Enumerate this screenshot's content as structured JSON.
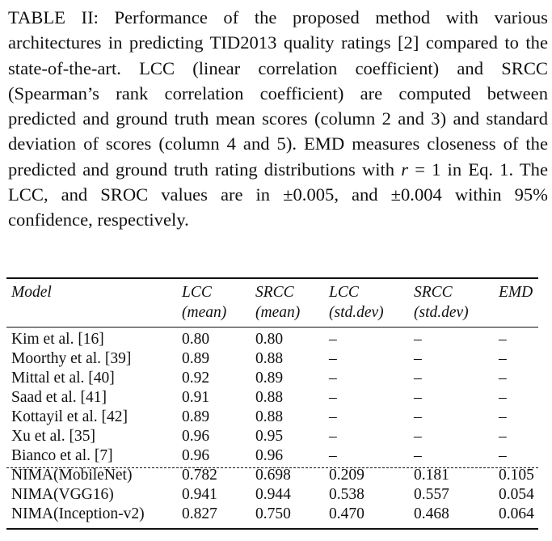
{
  "caption": {
    "label": "TABLE II:",
    "text_1": " Performance of the proposed method with various architectures in predicting TID2013 quality ratings [2] compared to the state-of-the-art. LCC (linear correlation coefficient) and SRCC (Spearman’s rank correlation coefficient) are computed between predicted and ground truth mean scores (column 2 and 3) and standard deviation of scores (column 4 and 5). EMD measures closeness of the predicted and ground truth rating distributions with ",
    "math_r": "r",
    "eq_text": " = 1",
    "text_2": " in Eq. 1. The LCC, and SROC values are in ±0.005, and ±0.004 within 95% confidence, respectively."
  },
  "table": {
    "headers": [
      {
        "line1": "Model",
        "line2": ""
      },
      {
        "line1": "LCC",
        "line2": "(mean)"
      },
      {
        "line1": "SRCC",
        "line2": "(mean)"
      },
      {
        "line1": "LCC",
        "line2": "(std.dev)"
      },
      {
        "line1": "SRCC",
        "line2": "(std.dev)"
      },
      {
        "line1": "EMD",
        "line2": ""
      }
    ],
    "rows": [
      [
        "Kim et al. [16]",
        "0.80",
        "0.80",
        "–",
        "–",
        "–"
      ],
      [
        "Moorthy et al. [39]",
        "0.89",
        "0.88",
        "–",
        "–",
        "–"
      ],
      [
        "Mittal et al. [40]",
        "0.92",
        "0.89",
        "–",
        "–",
        "–"
      ],
      [
        "Saad et al. [41]",
        "0.91",
        "0.88",
        "–",
        "–",
        "–"
      ],
      [
        "Kottayil et al. [42]",
        "0.89",
        "0.88",
        "–",
        "–",
        "–"
      ],
      [
        "Xu et al. [35]",
        "0.96",
        "0.95",
        "–",
        "–",
        "–"
      ],
      [
        "Bianco et al. [7]",
        "0.96",
        "0.96",
        "–",
        "–",
        "–"
      ],
      [
        "NIMA(MobileNet)",
        "0.782",
        "0.698",
        "0.209",
        "0.181",
        "0.105"
      ],
      [
        "NIMA(VGG16)",
        "0.941",
        "0.944",
        "0.538",
        "0.557",
        "0.054"
      ],
      [
        "NIMA(Inception-v2)",
        "0.827",
        "0.750",
        "0.470",
        "0.468",
        "0.064"
      ]
    ]
  }
}
